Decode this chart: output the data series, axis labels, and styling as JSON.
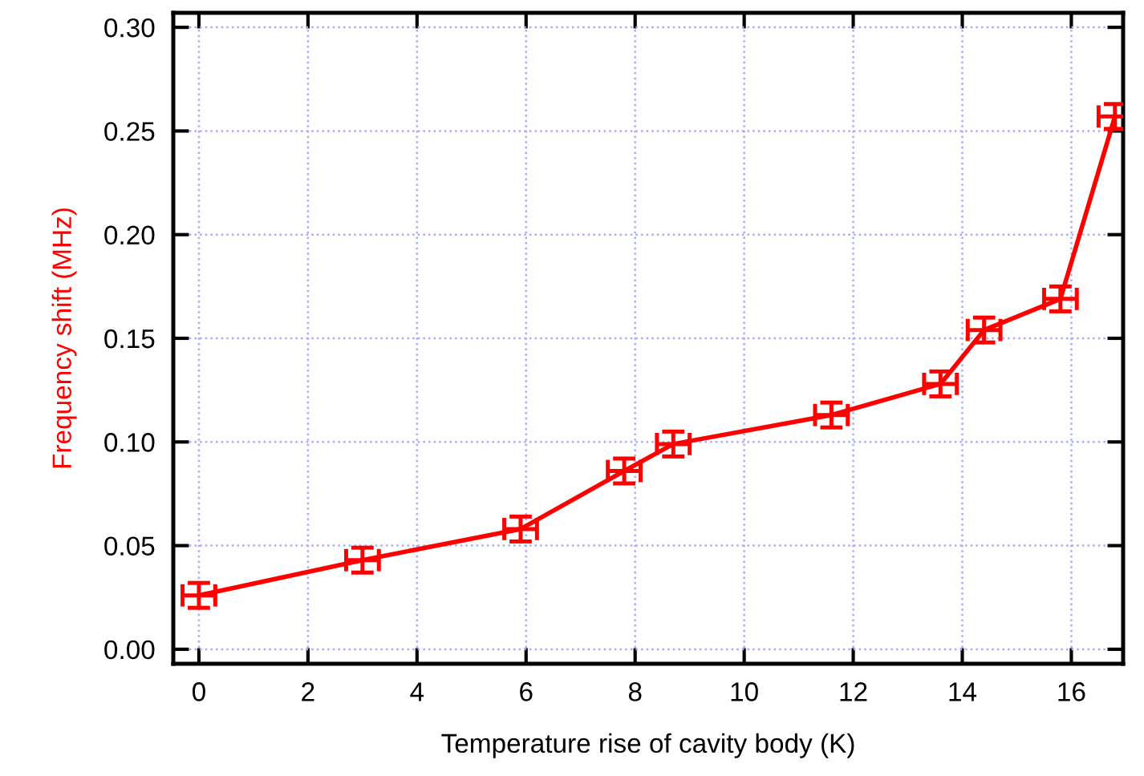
{
  "chart_data": {
    "type": "line",
    "xlabel": "Temperature rise of cavity body (K)",
    "ylabel": "Frequency shift (MHz)",
    "x": [
      0,
      3,
      5.9,
      7.8,
      8.7,
      11.6,
      13.6,
      14.4,
      15.8,
      16.8
    ],
    "series": [
      {
        "color": "#ff0000",
        "values": [
          0.026,
          0.043,
          0.058,
          0.086,
          0.099,
          0.113,
          0.128,
          0.154,
          0.169,
          0.257
        ],
        "errors": [
          0.006,
          0.006,
          0.006,
          0.006,
          0.006,
          0.006,
          0.006,
          0.006,
          0.006,
          0.006
        ],
        "xerrors": [
          0.3,
          0.3,
          0.3,
          0.3,
          0.3,
          0.3,
          0.3,
          0.3,
          0.3,
          0.3
        ]
      }
    ],
    "xlim": [
      -0.47,
      16.95
    ],
    "ylim": [
      -0.007,
      0.307
    ],
    "xticks": [
      0,
      2,
      4,
      6,
      8,
      10,
      12,
      14,
      16
    ],
    "yticks": [
      {
        "value": 0,
        "label": "0.00"
      },
      {
        "value": 0.05,
        "label": "0.05"
      },
      {
        "value": 0.1,
        "label": "0.10"
      },
      {
        "value": 0.15,
        "label": "0.15"
      },
      {
        "value": 0.2,
        "label": "0.20"
      },
      {
        "value": 0.25,
        "label": "0.25"
      },
      {
        "value": 0.3,
        "label": "0.30"
      }
    ],
    "grid": true,
    "marker": "none",
    "line_style": "solid",
    "legend": false
  }
}
